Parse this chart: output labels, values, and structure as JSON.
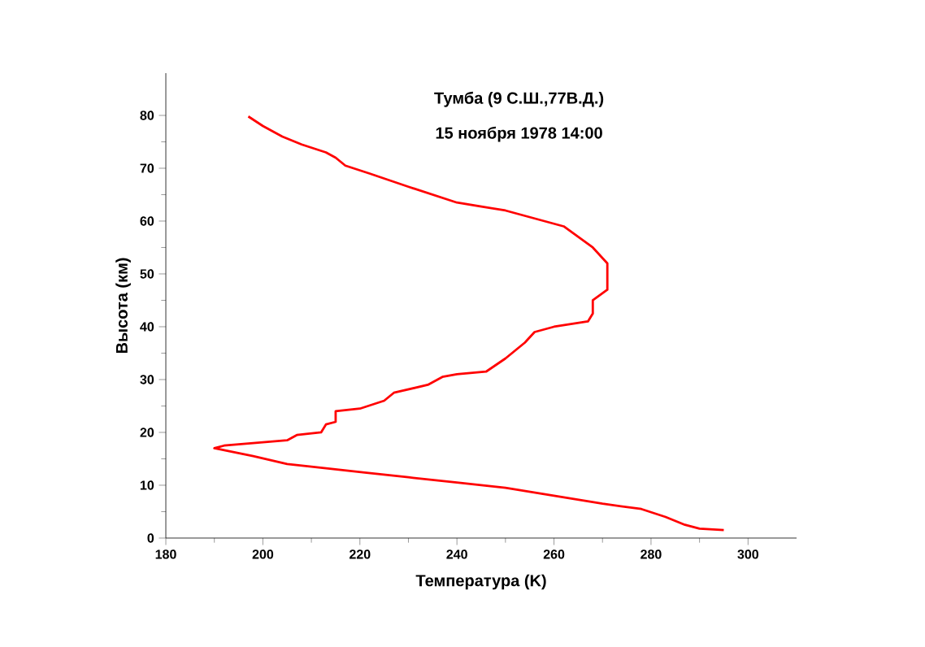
{
  "chart_data": {
    "type": "line",
    "title": "Тумба (9 С.Ш.,77В.Д.)",
    "subtitle": "15 ноября 1978 14:00",
    "xlabel": "Температура (K)",
    "ylabel": "Высота (км)",
    "xlim": [
      180,
      310
    ],
    "ylim": [
      0,
      88
    ],
    "xticks": [
      180,
      200,
      220,
      240,
      260,
      280,
      300
    ],
    "yticks": [
      0,
      10,
      20,
      30,
      40,
      50,
      60,
      70,
      80
    ],
    "grid": false,
    "marker": "none",
    "line_style": "solid",
    "series": [
      {
        "color": "#ff0000",
        "x": [
          295,
          290,
          287,
          283,
          278,
          270,
          260,
          250,
          240,
          230,
          221,
          210,
          205,
          198,
          190,
          192,
          205,
          207,
          212,
          213,
          215,
          215,
          220,
          225,
          227,
          234,
          237,
          240,
          246,
          250,
          252,
          254,
          256,
          260,
          267,
          268,
          268,
          271,
          271,
          268,
          262,
          250,
          240,
          230,
          222,
          217,
          215,
          213,
          208,
          204,
          200,
          197
        ],
        "values": [
          1.5,
          1.8,
          2.5,
          4,
          5.5,
          6.5,
          8,
          9.5,
          10.5,
          11.5,
          12.4,
          13.5,
          14,
          15.5,
          17,
          17.5,
          18.5,
          19.5,
          20,
          21.5,
          22,
          24,
          24.5,
          26,
          27.5,
          29,
          30.5,
          31,
          31.5,
          34,
          35.5,
          37,
          39,
          40,
          41,
          42.5,
          45,
          47,
          52,
          55,
          59,
          62,
          63.5,
          66.5,
          69,
          70.5,
          72,
          73,
          74.5,
          76,
          78,
          79.8
        ]
      }
    ]
  }
}
